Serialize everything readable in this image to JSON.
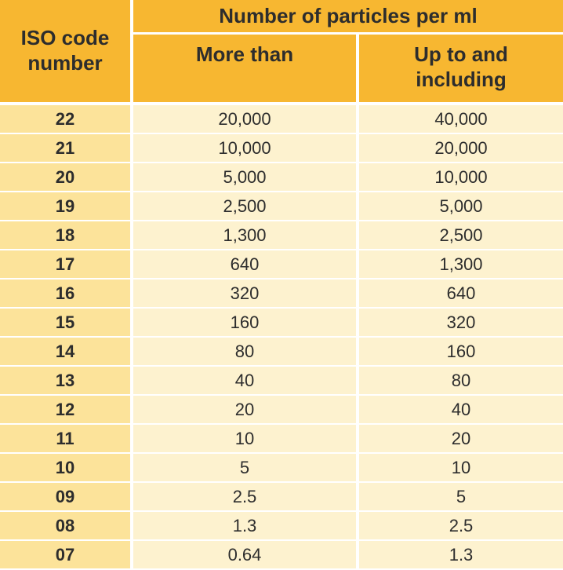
{
  "header": {
    "iso_line1": "ISO code",
    "iso_line2": "number",
    "group_label": "Number of particles per ml",
    "more_than": "More than",
    "up_to_line1": "Up to and",
    "up_to_line2": "including"
  },
  "colors": {
    "header_bg": "#f7b731",
    "code_col_bg": "#fce39a",
    "cell_bg": "#fdf2cf",
    "text": "#2d2d2d"
  },
  "rows": [
    {
      "code": "22",
      "more": "20,000",
      "upto": "40,000"
    },
    {
      "code": "21",
      "more": "10,000",
      "upto": "20,000"
    },
    {
      "code": "20",
      "more": "5,000",
      "upto": "10,000"
    },
    {
      "code": "19",
      "more": "2,500",
      "upto": "5,000"
    },
    {
      "code": "18",
      "more": "1,300",
      "upto": "2,500"
    },
    {
      "code": "17",
      "more": "640",
      "upto": "1,300"
    },
    {
      "code": "16",
      "more": "320",
      "upto": "640"
    },
    {
      "code": "15",
      "more": "160",
      "upto": "320"
    },
    {
      "code": "14",
      "more": "80",
      "upto": "160"
    },
    {
      "code": "13",
      "more": "40",
      "upto": "80"
    },
    {
      "code": "12",
      "more": "20",
      "upto": "40"
    },
    {
      "code": "11",
      "more": "10",
      "upto": "20"
    },
    {
      "code": "10",
      "more": "5",
      "upto": "10"
    },
    {
      "code": "09",
      "more": "2.5",
      "upto": "5"
    },
    {
      "code": "08",
      "more": "1.3",
      "upto": "2.5"
    },
    {
      "code": "07",
      "more": "0.64",
      "upto": "1.3"
    }
  ]
}
